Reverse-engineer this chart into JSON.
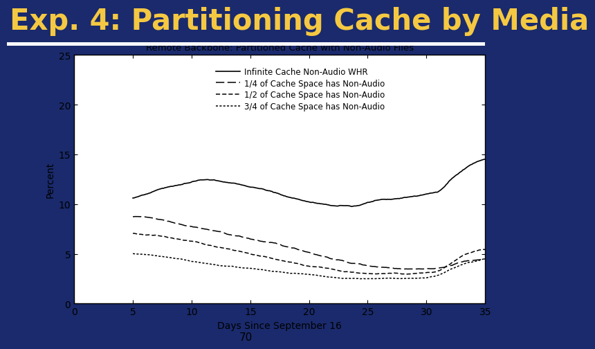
{
  "title": "Exp. 4: Partitioning Cache by Media",
  "slide_bg": "#1a2a6c",
  "title_color": "#f5c842",
  "chart_title": "Remote Backbone: Partitioned Cache with Non-Audio Files",
  "xlabel": "Days Since September 16",
  "ylabel": "Percent",
  "xlim": [
    0,
    35
  ],
  "ylim": [
    0,
    25
  ],
  "xticks": [
    0,
    5,
    10,
    15,
    20,
    25,
    30,
    35
  ],
  "yticks": [
    0,
    5,
    10,
    15,
    20,
    25
  ],
  "page_number": "70",
  "legend_entries": [
    "Infinite Cache Non-Audio WHR",
    "1/4 of Cache Space has Non-Audio",
    "1/2 of Cache Space has Non-Audio",
    "3/4 of Cache Space has Non-Audio"
  ],
  "title_fontsize": 30,
  "chart_bg": "white",
  "separator_color": "white"
}
